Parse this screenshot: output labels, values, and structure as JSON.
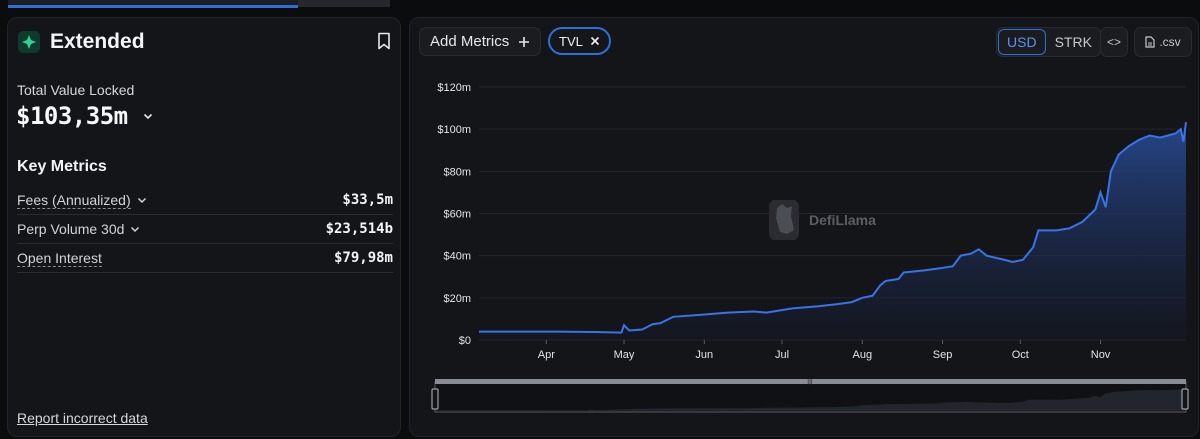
{
  "protocol": {
    "name": "Extended",
    "logo_color": "#2fd39a"
  },
  "tvl": {
    "label": "Total Value Locked",
    "value": "$103,35m"
  },
  "key_metrics": {
    "title": "Key Metrics",
    "rows": [
      {
        "label": "Fees (Annualized)",
        "value": "$33,5m",
        "dropdown": true,
        "dotted": true
      },
      {
        "label": "Perp Volume 30d",
        "value": "$23,514b",
        "dropdown": true,
        "dotted": false
      },
      {
        "label": "Open Interest",
        "value": "$79,98m",
        "dropdown": false,
        "dotted": true
      }
    ]
  },
  "report_link": "Report incorrect data",
  "toolbar": {
    "add_metrics_label": "Add Metrics",
    "chip_label": "TVL",
    "currencies": [
      "USD",
      "STRK"
    ],
    "active_currency": "USD",
    "embed_label": "<>",
    "csv_label": ".csv"
  },
  "watermark": "DefiLlama",
  "colors": {
    "accent": "#2f6fd9",
    "line": "#3a73e8"
  },
  "chart_data": {
    "type": "area",
    "series": [
      {
        "name": "TVL"
      }
    ],
    "y_unit": "$m",
    "ylim": [
      0,
      120
    ],
    "y_ticks": [
      "$0",
      "$20m",
      "$40m",
      "$60m",
      "$80m",
      "$100m",
      "$120m"
    ],
    "x_ticks": [
      "Apr",
      "May",
      "Jun",
      "Jul",
      "Aug",
      "Sep",
      "Oct",
      "Nov"
    ],
    "points": [
      [
        "Mar 06",
        4
      ],
      [
        "Mar 20",
        4
      ],
      [
        "Apr 05",
        4
      ],
      [
        "Apr 20",
        3.8
      ],
      [
        "Apr 30",
        3.5
      ],
      [
        "May 01",
        7
      ],
      [
        "May 03",
        4.5
      ],
      [
        "May 08",
        5
      ],
      [
        "May 12",
        7.5
      ],
      [
        "May 15",
        8
      ],
      [
        "May 20",
        11
      ],
      [
        "May 31",
        12
      ],
      [
        "Jun 10",
        13
      ],
      [
        "Jun 20",
        13.5
      ],
      [
        "Jun 25",
        13
      ],
      [
        "Jun 30",
        14
      ],
      [
        "Jul 05",
        15
      ],
      [
        "Jul 15",
        16
      ],
      [
        "Jul 22",
        17
      ],
      [
        "Jul 28",
        18
      ],
      [
        "Aug 01",
        20
      ],
      [
        "Aug 05",
        21
      ],
      [
        "Aug 08",
        26
      ],
      [
        "Aug 10",
        28
      ],
      [
        "Aug 15",
        29
      ],
      [
        "Aug 17",
        32
      ],
      [
        "Aug 25",
        33
      ],
      [
        "Aug 31",
        34
      ],
      [
        "Sep 05",
        35
      ],
      [
        "Sep 08",
        40
      ],
      [
        "Sep 12",
        41
      ],
      [
        "Sep 15",
        43
      ],
      [
        "Sep 18",
        40
      ],
      [
        "Sep 25",
        38
      ],
      [
        "Sep 28",
        37
      ],
      [
        "Oct 02",
        38
      ],
      [
        "Oct 06",
        44
      ],
      [
        "Oct 08",
        52
      ],
      [
        "Oct 15",
        52
      ],
      [
        "Oct 20",
        53
      ],
      [
        "Oct 25",
        56
      ],
      [
        "Oct 30",
        62
      ],
      [
        "Nov 01",
        70
      ],
      [
        "Nov 03",
        63
      ],
      [
        "Nov 05",
        80
      ],
      [
        "Nov 08",
        88
      ],
      [
        "Nov 12",
        92
      ],
      [
        "Nov 16",
        95
      ],
      [
        "Nov 20",
        97
      ],
      [
        "Nov 24",
        96
      ],
      [
        "Nov 27",
        97
      ],
      [
        "Nov 30",
        98
      ],
      [
        "Dec 02",
        100
      ],
      [
        "Dec 03",
        94
      ],
      [
        "Dec 04",
        103.35
      ]
    ]
  }
}
